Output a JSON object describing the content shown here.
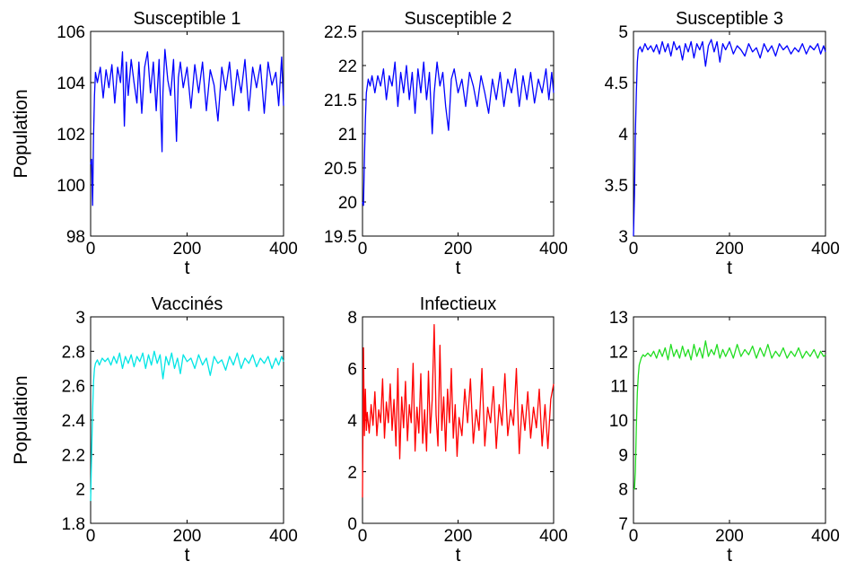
{
  "chart_data": [
    {
      "type": "line",
      "title": "Susceptible 1",
      "xlabel": "t",
      "ylabel": "Population",
      "xlim": [
        0,
        400
      ],
      "ylim": [
        98,
        106
      ],
      "xticks": [
        "0",
        "200",
        "400"
      ],
      "yticks": [
        "98",
        "100",
        "102",
        "104",
        "106"
      ],
      "color": "#0000ff",
      "series": [
        {
          "x": [
            0,
            2,
            4,
            6,
            8,
            10,
            14,
            20,
            26,
            32,
            38,
            44,
            50,
            56,
            62,
            66,
            70,
            74,
            78,
            84,
            90,
            96,
            100,
            106,
            112,
            118,
            124,
            130,
            136,
            142,
            148,
            150,
            154,
            160,
            166,
            172,
            178,
            182,
            186,
            192,
            200,
            208,
            216,
            224,
            232,
            240,
            248,
            256,
            264,
            272,
            280,
            288,
            296,
            304,
            312,
            320,
            328,
            336,
            344,
            352,
            360,
            368,
            376,
            384,
            390,
            396,
            400
          ],
          "values": [
            100.8,
            101.0,
            99.2,
            101.8,
            103.5,
            104.4,
            104.0,
            104.6,
            103.4,
            104.5,
            103.8,
            104.7,
            103.2,
            104.6,
            104.0,
            105.2,
            102.3,
            104.8,
            103.5,
            104.9,
            104.0,
            103.2,
            104.8,
            102.8,
            104.6,
            105.2,
            103.6,
            104.8,
            102.9,
            104.9,
            101.3,
            103.6,
            105.3,
            104.1,
            103.5,
            104.9,
            101.7,
            104.2,
            104.8,
            103.8,
            104.6,
            103.0,
            104.7,
            103.6,
            104.8,
            102.9,
            104.5,
            103.9,
            102.5,
            104.6,
            103.7,
            104.8,
            103.1,
            104.5,
            103.6,
            104.9,
            102.9,
            104.6,
            103.8,
            104.7,
            102.8,
            104.8,
            103.9,
            104.4,
            103.1,
            105.0,
            103.1
          ]
        }
      ]
    },
    {
      "type": "line",
      "title": "Susceptible 2",
      "xlabel": "t",
      "ylabel": "",
      "xlim": [
        0,
        400
      ],
      "ylim": [
        19.5,
        22.5
      ],
      "xticks": [
        "0",
        "200",
        "400"
      ],
      "yticks": [
        "19.5",
        "20",
        "20.5",
        "21",
        "21.5",
        "22",
        "22.5"
      ],
      "color": "#0000ff",
      "series": [
        {
          "x": [
            0,
            2,
            4,
            6,
            8,
            12,
            16,
            20,
            26,
            32,
            38,
            44,
            50,
            56,
            62,
            68,
            74,
            80,
            86,
            92,
            98,
            104,
            110,
            116,
            122,
            128,
            134,
            140,
            146,
            150,
            156,
            162,
            168,
            174,
            180,
            186,
            192,
            200,
            208,
            216,
            224,
            232,
            240,
            248,
            256,
            264,
            272,
            280,
            288,
            296,
            304,
            312,
            320,
            328,
            336,
            344,
            352,
            360,
            368,
            376,
            384,
            390,
            396,
            400
          ],
          "values": [
            20.0,
            19.95,
            20.6,
            21.2,
            21.6,
            21.8,
            21.7,
            21.85,
            21.6,
            21.85,
            21.7,
            21.95,
            21.5,
            21.85,
            21.7,
            22.05,
            21.4,
            21.9,
            21.6,
            22.0,
            21.5,
            21.9,
            21.3,
            21.95,
            21.6,
            22.05,
            21.5,
            21.9,
            21.0,
            21.6,
            22.05,
            21.7,
            21.9,
            21.4,
            21.05,
            21.8,
            21.95,
            21.6,
            21.8,
            21.4,
            21.9,
            21.7,
            21.4,
            21.85,
            21.6,
            21.3,
            21.8,
            21.5,
            21.9,
            21.4,
            21.8,
            21.6,
            21.95,
            21.4,
            21.85,
            21.5,
            21.9,
            21.45,
            21.8,
            21.6,
            21.95,
            21.5,
            21.9,
            21.6
          ]
        }
      ]
    },
    {
      "type": "line",
      "title": "Susceptible 3",
      "xlabel": "t",
      "ylabel": "",
      "xlim": [
        0,
        400
      ],
      "ylim": [
        3,
        5
      ],
      "xticks": [
        "0",
        "200",
        "400"
      ],
      "yticks": [
        "3",
        "3.5",
        "4",
        "4.5",
        "5"
      ],
      "color": "#0000ff",
      "series": [
        {
          "x": [
            0,
            2,
            4,
            6,
            8,
            10,
            14,
            18,
            24,
            30,
            36,
            42,
            48,
            54,
            60,
            66,
            72,
            78,
            84,
            90,
            96,
            102,
            108,
            114,
            120,
            126,
            132,
            138,
            144,
            150,
            156,
            162,
            168,
            174,
            180,
            186,
            192,
            200,
            208,
            216,
            224,
            232,
            240,
            248,
            256,
            264,
            272,
            280,
            288,
            296,
            304,
            312,
            320,
            328,
            336,
            344,
            352,
            360,
            368,
            376,
            384,
            390,
            396,
            400
          ],
          "values": [
            3.0,
            3.4,
            4.0,
            4.4,
            4.7,
            4.82,
            4.85,
            4.8,
            4.88,
            4.82,
            4.86,
            4.8,
            4.87,
            4.78,
            4.9,
            4.8,
            4.88,
            4.76,
            4.9,
            4.82,
            4.86,
            4.72,
            4.88,
            4.8,
            4.9,
            4.74,
            4.88,
            4.82,
            4.9,
            4.66,
            4.86,
            4.92,
            4.8,
            4.9,
            4.7,
            4.88,
            4.82,
            4.9,
            4.78,
            4.86,
            4.82,
            4.76,
            4.88,
            4.8,
            4.84,
            4.74,
            4.88,
            4.8,
            4.86,
            4.76,
            4.88,
            4.82,
            4.86,
            4.78,
            4.84,
            4.8,
            4.88,
            4.78,
            4.86,
            4.82,
            4.88,
            4.78,
            4.86,
            4.8
          ]
        }
      ]
    },
    {
      "type": "line",
      "title": "Vaccinés",
      "xlabel": "t",
      "ylabel": "Population",
      "xlim": [
        0,
        400
      ],
      "ylim": [
        1.8,
        3
      ],
      "xticks": [
        "0",
        "200",
        "400"
      ],
      "yticks": [
        "1.8",
        "2",
        "2.2",
        "2.4",
        "2.6",
        "2.8",
        "3"
      ],
      "color": "#00e5e5",
      "series": [
        {
          "x": [
            0,
            2,
            4,
            6,
            8,
            10,
            14,
            18,
            24,
            30,
            36,
            42,
            48,
            54,
            60,
            66,
            72,
            78,
            84,
            90,
            96,
            102,
            108,
            114,
            120,
            126,
            132,
            138,
            144,
            150,
            156,
            162,
            168,
            174,
            180,
            186,
            192,
            200,
            208,
            216,
            224,
            232,
            240,
            248,
            256,
            264,
            272,
            280,
            288,
            296,
            304,
            312,
            320,
            328,
            336,
            344,
            352,
            360,
            368,
            376,
            384,
            390,
            396,
            400
          ],
          "values": [
            1.93,
            2.2,
            2.45,
            2.62,
            2.7,
            2.73,
            2.75,
            2.72,
            2.76,
            2.74,
            2.76,
            2.72,
            2.77,
            2.73,
            2.79,
            2.7,
            2.77,
            2.73,
            2.78,
            2.71,
            2.77,
            2.74,
            2.79,
            2.7,
            2.78,
            2.72,
            2.8,
            2.73,
            2.78,
            2.64,
            2.77,
            2.72,
            2.79,
            2.7,
            2.76,
            2.67,
            2.78,
            2.74,
            2.76,
            2.7,
            2.78,
            2.72,
            2.76,
            2.66,
            2.77,
            2.73,
            2.75,
            2.69,
            2.77,
            2.72,
            2.79,
            2.7,
            2.76,
            2.73,
            2.78,
            2.71,
            2.76,
            2.73,
            2.77,
            2.7,
            2.76,
            2.72,
            2.77,
            2.74
          ]
        }
      ]
    },
    {
      "type": "line",
      "title": "Infectieux",
      "xlabel": "t",
      "ylabel": "",
      "xlim": [
        0,
        400
      ],
      "ylim": [
        0,
        8
      ],
      "xticks": [
        "0",
        "200",
        "400"
      ],
      "yticks": [
        "0",
        "2",
        "4",
        "6",
        "8"
      ],
      "color": "#ff0000",
      "series": [
        {
          "x": [
            0,
            2,
            4,
            6,
            8,
            10,
            14,
            18,
            22,
            26,
            30,
            34,
            38,
            42,
            46,
            50,
            54,
            58,
            62,
            66,
            70,
            74,
            78,
            82,
            86,
            90,
            94,
            98,
            102,
            106,
            110,
            114,
            118,
            122,
            126,
            130,
            134,
            138,
            142,
            146,
            150,
            154,
            158,
            162,
            166,
            170,
            174,
            178,
            182,
            186,
            190,
            194,
            198,
            202,
            208,
            214,
            220,
            226,
            232,
            238,
            244,
            250,
            256,
            262,
            268,
            274,
            280,
            286,
            292,
            298,
            304,
            310,
            316,
            322,
            328,
            334,
            340,
            346,
            352,
            358,
            364,
            370,
            376,
            382,
            388,
            394,
            400
          ],
          "values": [
            1.0,
            6.8,
            3.4,
            5.2,
            3.6,
            4.3,
            3.5,
            4.6,
            3.8,
            5.1,
            3.4,
            4.4,
            3.9,
            5.6,
            3.3,
            4.7,
            3.9,
            5.4,
            3.6,
            4.8,
            3.0,
            6.0,
            2.5,
            4.9,
            3.7,
            5.5,
            3.2,
            4.6,
            3.9,
            6.2,
            2.8,
            4.5,
            3.5,
            5.8,
            3.1,
            4.4,
            2.8,
            5.9,
            3.5,
            4.8,
            7.7,
            4.2,
            3.0,
            6.9,
            3.6,
            4.9,
            2.8,
            5.2,
            3.9,
            6.0,
            3.3,
            4.6,
            2.6,
            4.1,
            3.4,
            5.2,
            3.9,
            5.6,
            3.1,
            4.4,
            3.6,
            6.0,
            3.0,
            4.5,
            3.9,
            5.3,
            2.9,
            4.6,
            3.8,
            5.8,
            3.4,
            4.4,
            3.8,
            6.0,
            2.7,
            4.6,
            3.6,
            5.1,
            3.3,
            4.5,
            3.7,
            5.2,
            3.0,
            4.6,
            2.9,
            4.8,
            5.4
          ]
        }
      ]
    },
    {
      "type": "line",
      "title": "",
      "xlabel": "t",
      "ylabel": "",
      "xlim": [
        0,
        400
      ],
      "ylim": [
        7,
        13
      ],
      "xticks": [
        "0",
        "200",
        "400"
      ],
      "yticks": [
        "7",
        "8",
        "9",
        "10",
        "11",
        "12",
        "13"
      ],
      "color": "#22dd22",
      "series": [
        {
          "x": [
            0,
            2,
            4,
            6,
            8,
            10,
            12,
            16,
            20,
            24,
            30,
            36,
            42,
            48,
            54,
            60,
            66,
            72,
            78,
            84,
            90,
            96,
            102,
            108,
            114,
            120,
            126,
            132,
            138,
            144,
            150,
            156,
            162,
            168,
            174,
            180,
            186,
            192,
            200,
            208,
            216,
            224,
            232,
            240,
            248,
            256,
            264,
            272,
            280,
            288,
            296,
            304,
            312,
            320,
            328,
            336,
            344,
            352,
            360,
            368,
            376,
            384,
            390,
            396,
            400
          ],
          "values": [
            8.0,
            8.0,
            8.5,
            9.8,
            10.8,
            11.3,
            11.6,
            11.8,
            11.9,
            11.85,
            11.95,
            11.85,
            12.0,
            11.8,
            12.05,
            11.85,
            12.1,
            11.75,
            12.2,
            11.85,
            12.05,
            11.8,
            12.15,
            11.85,
            12.05,
            11.75,
            12.2,
            11.85,
            12.1,
            11.8,
            12.3,
            11.85,
            12.05,
            11.9,
            12.2,
            11.8,
            12.05,
            11.85,
            12.1,
            11.8,
            12.2,
            11.85,
            12.05,
            11.9,
            12.15,
            11.8,
            12.1,
            11.85,
            12.2,
            11.8,
            12.0,
            11.85,
            12.1,
            11.8,
            12.0,
            11.85,
            12.1,
            11.8,
            12.0,
            11.85,
            12.05,
            11.8,
            12.0,
            11.85,
            11.9
          ]
        }
      ]
    }
  ]
}
